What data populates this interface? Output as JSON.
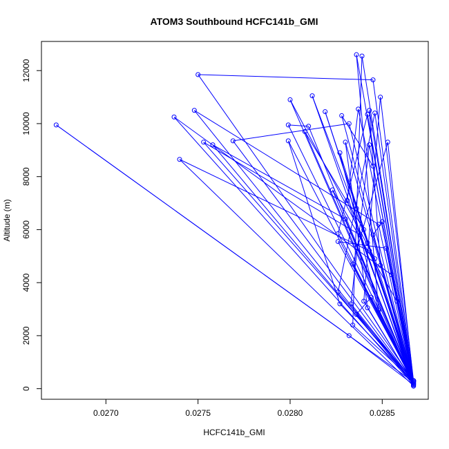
{
  "chart_data": {
    "type": "scatter",
    "title": "ATOM3 Southbound HCFC141b_GMI",
    "xlabel": "HCFC141b_GMI",
    "ylabel": "Altitude (m)",
    "xlim": [
      0.02665,
      0.02875
    ],
    "ylim": [
      -400,
      13100
    ],
    "x_ticks": [
      0.027,
      0.0275,
      0.028,
      0.0285
    ],
    "x_tick_labels": [
      "0.0270",
      "0.0275",
      "0.0280",
      "0.0285"
    ],
    "y_ticks": [
      0,
      2000,
      4000,
      6000,
      8000,
      10000,
      12000
    ],
    "y_tick_labels": [
      "0",
      "2000",
      "4000",
      "6000",
      "8000",
      "10000",
      "12000"
    ],
    "grid": false,
    "legend": "none",
    "color": "#0000ff",
    "series": [
      {
        "style": "line-with-open-circles",
        "points": [
          [
            0.02867,
            300
          ],
          [
            0.0275,
            11850
          ],
          [
            0.02845,
            11650
          ],
          [
            0.02867,
            250
          ],
          [
            0.02673,
            9950
          ],
          [
            0.02832,
            2000
          ],
          [
            0.02867,
            150
          ],
          [
            0.02737,
            10250
          ],
          [
            0.02855,
            4300
          ],
          [
            0.02867,
            200
          ],
          [
            0.02748,
            10500
          ],
          [
            0.02848,
            6200
          ],
          [
            0.02867,
            100
          ],
          [
            0.0274,
            8650
          ],
          [
            0.02843,
            5200
          ],
          [
            0.02867,
            300
          ],
          [
            0.02753,
            9300
          ],
          [
            0.02838,
            5800
          ],
          [
            0.02867,
            200
          ],
          [
            0.02758,
            9200
          ],
          [
            0.0283,
            6400
          ],
          [
            0.02867,
            250
          ],
          [
            0.02769,
            9350
          ],
          [
            0.02832,
            10000
          ],
          [
            0.02867,
            150
          ],
          [
            0.028,
            10900
          ],
          [
            0.02846,
            4900
          ],
          [
            0.02867,
            300
          ],
          [
            0.02799,
            9950
          ],
          [
            0.0281,
            9900
          ],
          [
            0.02867,
            200
          ],
          [
            0.02799,
            9350
          ],
          [
            0.02827,
            3200
          ],
          [
            0.02867,
            250
          ],
          [
            0.02808,
            9700
          ],
          [
            0.0284,
            6000
          ],
          [
            0.02867,
            100
          ],
          [
            0.02812,
            11050
          ],
          [
            0.02842,
            5500
          ],
          [
            0.02867,
            300
          ],
          [
            0.02819,
            10450
          ],
          [
            0.02836,
            6800
          ],
          [
            0.02867,
            200
          ],
          [
            0.02828,
            10300
          ],
          [
            0.02845,
            8400
          ],
          [
            0.02867,
            250
          ],
          [
            0.02836,
            12600
          ],
          [
            0.02848,
            3000
          ],
          [
            0.02867,
            150
          ],
          [
            0.02839,
            12550
          ],
          [
            0.02834,
            2400
          ],
          [
            0.02867,
            300
          ],
          [
            0.02837,
            10550
          ],
          [
            0.02831,
            7100
          ],
          [
            0.02867,
            200
          ],
          [
            0.02842,
            10350
          ],
          [
            0.02826,
            5850
          ],
          [
            0.02867,
            250
          ],
          [
            0.02843,
            10500
          ],
          [
            0.02849,
            4650
          ],
          [
            0.02867,
            150
          ],
          [
            0.02846,
            10400
          ],
          [
            0.02826,
            3650
          ],
          [
            0.02867,
            300
          ],
          [
            0.02849,
            11000
          ],
          [
            0.0284,
            3300
          ],
          [
            0.02867,
            200
          ],
          [
            0.02853,
            9300
          ],
          [
            0.02834,
            4700
          ],
          [
            0.02867,
            250
          ],
          [
            0.02823,
            7500
          ],
          [
            0.02858,
            3300
          ],
          [
            0.02867,
            100
          ],
          [
            0.02827,
            8900
          ],
          [
            0.02848,
            2950
          ],
          [
            0.02867,
            300
          ],
          [
            0.0283,
            9300
          ],
          [
            0.02842,
            3050
          ],
          [
            0.02867,
            200
          ],
          [
            0.02843,
            9200
          ],
          [
            0.02833,
            3200
          ],
          [
            0.02867,
            250
          ],
          [
            0.02826,
            5550
          ],
          [
            0.02852,
            5300
          ],
          [
            0.02867,
            150
          ],
          [
            0.02836,
            2800
          ],
          [
            0.02844,
            3450
          ],
          [
            0.02867,
            300
          ],
          [
            0.02845,
            5800
          ],
          [
            0.0285,
            6300
          ],
          [
            0.02867,
            200
          ]
        ]
      }
    ]
  }
}
